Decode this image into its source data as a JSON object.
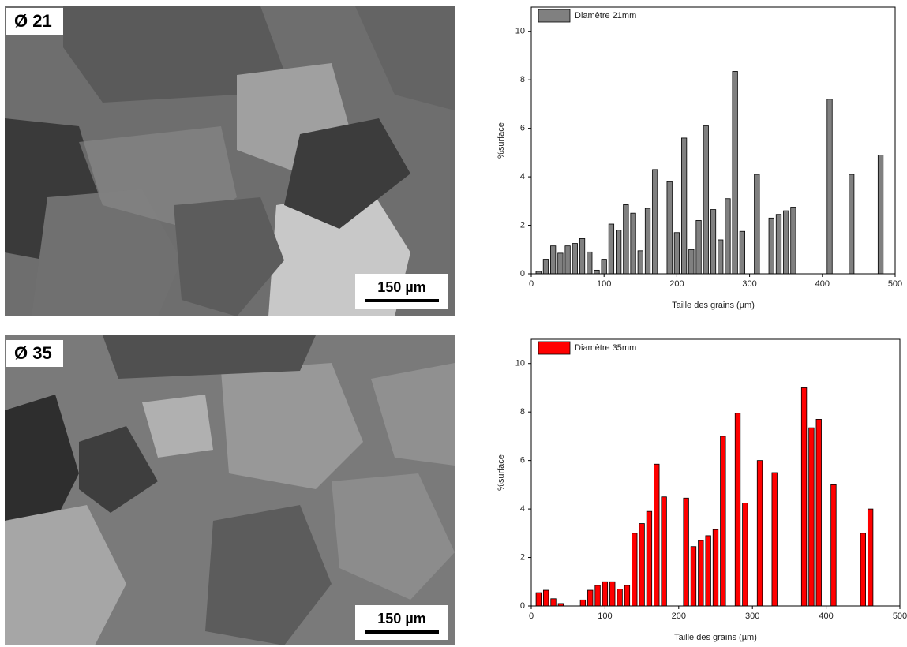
{
  "images": [
    {
      "label": "Ø 21",
      "scale_bar": "150 µm"
    },
    {
      "label": "Ø 35",
      "scale_bar": "150 µm"
    }
  ],
  "chart_data": [
    {
      "type": "bar",
      "xlabel": "Taille des grains (µm)",
      "ylabel": "%surface",
      "x": [
        10,
        20,
        30,
        40,
        50,
        60,
        70,
        80,
        90,
        100,
        110,
        120,
        130,
        140,
        150,
        160,
        170,
        190,
        200,
        210,
        220,
        230,
        240,
        250,
        260,
        270,
        280,
        290,
        310,
        330,
        340,
        350,
        360,
        410,
        440,
        480
      ],
      "series": [
        {
          "name": "Diamètre 21mm",
          "color": "#808080",
          "values": [
            0.1,
            0.6,
            1.15,
            0.85,
            1.15,
            1.25,
            1.45,
            0.9,
            0.15,
            0.6,
            2.05,
            1.8,
            2.85,
            2.5,
            0.95,
            2.7,
            4.3,
            3.8,
            1.7,
            5.6,
            1.0,
            2.2,
            6.1,
            2.65,
            1.4,
            3.1,
            8.35,
            1.75,
            4.1,
            2.3,
            2.45,
            2.6,
            2.75,
            7.2,
            4.1,
            4.9
          ]
        }
      ],
      "xlim": [
        0,
        500
      ],
      "ylim": [
        0,
        11
      ],
      "xticks": [
        0,
        100,
        200,
        300,
        400,
        500
      ],
      "yticks": [
        0,
        2,
        4,
        6,
        8,
        10
      ],
      "legend": "upper left"
    },
    {
      "type": "bar",
      "xlabel": "Taille des grains (µm)",
      "ylabel": "%surface",
      "x": [
        10,
        20,
        30,
        40,
        70,
        80,
        90,
        100,
        110,
        120,
        130,
        140,
        150,
        160,
        170,
        180,
        210,
        220,
        230,
        240,
        250,
        260,
        280,
        290,
        310,
        330,
        370,
        380,
        390,
        410,
        450,
        460
      ],
      "series": [
        {
          "name": "Diamètre 35mm",
          "color": "#ff0000",
          "values": [
            0.55,
            0.65,
            0.3,
            0.1,
            0.25,
            0.65,
            0.85,
            1.0,
            1.0,
            0.7,
            0.85,
            3.0,
            3.4,
            3.9,
            5.85,
            4.5,
            4.45,
            2.45,
            2.7,
            2.9,
            3.15,
            7.0,
            7.95,
            4.25,
            6.0,
            5.5,
            9.0,
            7.35,
            7.7,
            5.0,
            3.0,
            4.0
          ]
        }
      ],
      "xlim": [
        0,
        500
      ],
      "ylim": [
        0,
        11
      ],
      "xticks": [
        0,
        100,
        200,
        300,
        400,
        500
      ],
      "yticks": [
        0,
        2,
        4,
        6,
        8,
        10
      ],
      "legend": "upper left"
    }
  ]
}
